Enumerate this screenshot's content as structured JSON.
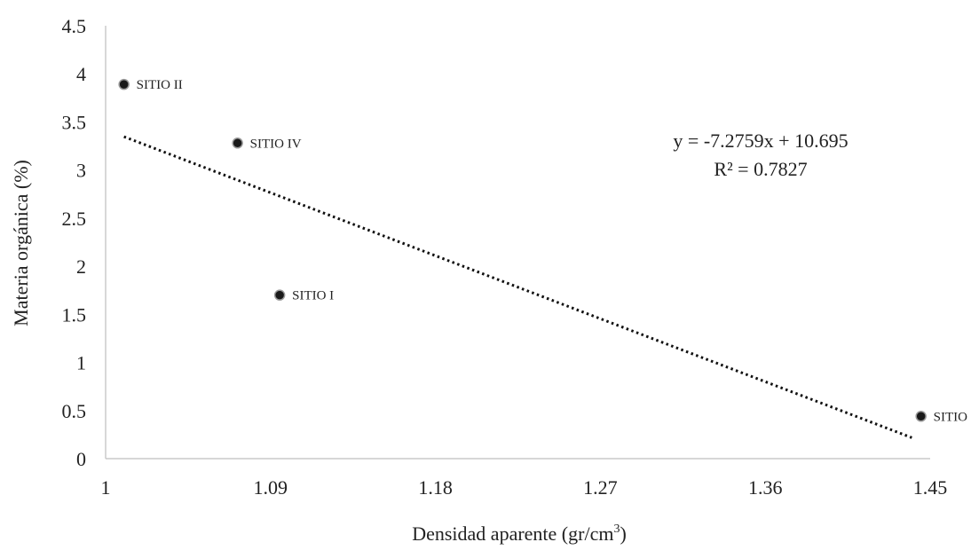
{
  "chart_data": {
    "type": "scatter",
    "title": "",
    "xlabel": "Densidad aparente (gr/cm",
    "xlabel_superscript": "3",
    "xlabel_suffix": ")",
    "ylabel": "Materia orgánica (%)",
    "xlim": [
      1,
      1.45
    ],
    "ylim": [
      0,
      4.5
    ],
    "x_ticks": [
      "1",
      "1.09",
      "1.18",
      "1.27",
      "1.36",
      "1.45"
    ],
    "y_ticks": [
      "0",
      "0.5",
      "1",
      "1.5",
      "2",
      "2.5",
      "3",
      "3.5",
      "4",
      "4.5"
    ],
    "grid": false,
    "legend": "none",
    "points": [
      {
        "label": "SITIO I",
        "x": 1.095,
        "y": 1.7
      },
      {
        "label": "SITIO II",
        "x": 1.01,
        "y": 3.89
      },
      {
        "label": "SITIO III",
        "x": 1.445,
        "y": 0.44
      },
      {
        "label": "SITIO IV",
        "x": 1.072,
        "y": 3.28
      }
    ],
    "trendline": {
      "type": "linear",
      "slope": -7.2759,
      "intercept": 10.695,
      "x_range": [
        1.01,
        1.44
      ],
      "style": "dotted",
      "equation": "y = -7.2759x + 10.695",
      "r_squared": "R² = 0.7827"
    },
    "colors": {
      "marker_fill": "#1a1a1a",
      "marker_stroke": "#9a9a9a",
      "trendline": "#111111",
      "axis": "#bfbfbf"
    }
  }
}
